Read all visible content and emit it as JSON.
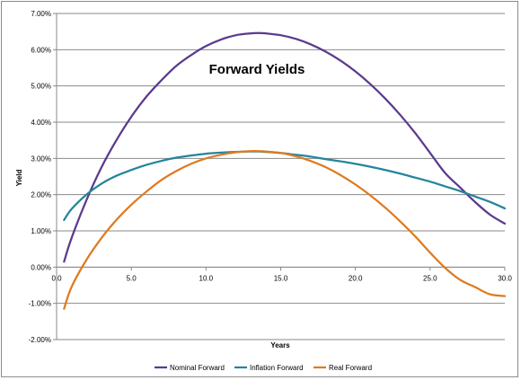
{
  "chart_data": {
    "type": "line",
    "title": "Forward Yields",
    "xlabel": "Years",
    "ylabel": "Yield",
    "xlim": [
      0,
      30
    ],
    "ylim": [
      -2.0,
      7.0
    ],
    "x_ticks": [
      "0.0",
      "5.0",
      "10.0",
      "15.0",
      "20.0",
      "25.0",
      "30.0"
    ],
    "y_ticks": [
      "-2.00%",
      "-1.00%",
      "0.00%",
      "1.00%",
      "2.00%",
      "3.00%",
      "4.00%",
      "5.00%",
      "6.00%",
      "7.00%"
    ],
    "grid": "horizontal",
    "legend": "bottom",
    "x": [
      0.5,
      1.0,
      2.0,
      3.0,
      4.0,
      5.0,
      6.0,
      7.0,
      8.0,
      9.0,
      10.0,
      11.0,
      12.0,
      13.0,
      13.5,
      14.0,
      15.0,
      16.0,
      17.0,
      18.0,
      19.0,
      20.0,
      21.0,
      22.0,
      23.0,
      24.0,
      25.0,
      26.0,
      27.0,
      28.0,
      29.0,
      30.0
    ],
    "series": [
      {
        "name": "Nominal Forward",
        "color": "#5b3a8e",
        "values": [
          0.15,
          0.8,
          1.85,
          2.75,
          3.5,
          4.15,
          4.7,
          5.15,
          5.55,
          5.85,
          6.1,
          6.28,
          6.4,
          6.45,
          6.46,
          6.45,
          6.4,
          6.3,
          6.15,
          5.95,
          5.7,
          5.4,
          5.05,
          4.65,
          4.2,
          3.7,
          3.15,
          2.6,
          2.2,
          1.8,
          1.45,
          1.2
        ]
      },
      {
        "name": "Inflation Forward",
        "color": "#24859b",
        "values": [
          1.3,
          1.6,
          2.0,
          2.3,
          2.52,
          2.68,
          2.82,
          2.93,
          3.02,
          3.08,
          3.13,
          3.16,
          3.18,
          3.19,
          3.19,
          3.18,
          3.15,
          3.1,
          3.05,
          2.98,
          2.92,
          2.85,
          2.77,
          2.68,
          2.58,
          2.47,
          2.36,
          2.23,
          2.1,
          1.95,
          1.8,
          1.62
        ]
      },
      {
        "name": "Real Forward",
        "color": "#df7a20",
        "values": [
          -1.15,
          -0.55,
          0.2,
          0.8,
          1.3,
          1.72,
          2.08,
          2.4,
          2.65,
          2.85,
          3.0,
          3.1,
          3.17,
          3.2,
          3.2,
          3.19,
          3.15,
          3.06,
          2.93,
          2.76,
          2.54,
          2.28,
          1.98,
          1.64,
          1.26,
          0.85,
          0.4,
          -0.02,
          -0.35,
          -0.55,
          -0.75,
          -0.8
        ]
      }
    ]
  }
}
